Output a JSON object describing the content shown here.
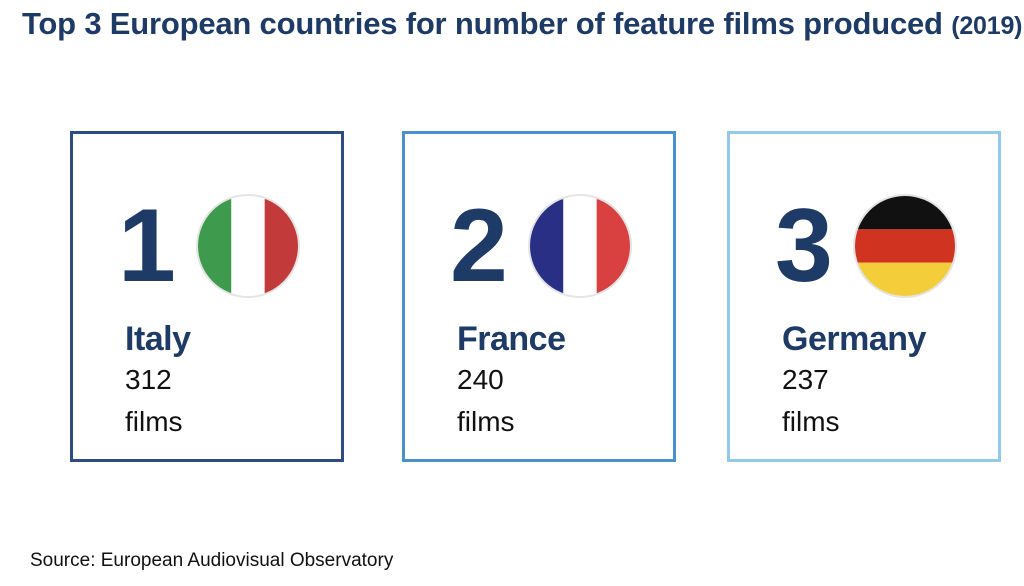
{
  "title": {
    "main": "Top 3 European countries for number of feature films produced",
    "year": "(2019)"
  },
  "cards": [
    {
      "rank": "1",
      "country": "Italy",
      "count": "312",
      "unit": "films",
      "flag_icon": "italy-flag-icon",
      "flag_colors": [
        "#3e9a4c",
        "#ffffff",
        "#c23a3a"
      ]
    },
    {
      "rank": "2",
      "country": "France",
      "count": "240",
      "unit": "films",
      "flag_icon": "france-flag-icon",
      "flag_colors": [
        "#2a2f86",
        "#ffffff",
        "#d94141"
      ]
    },
    {
      "rank": "3",
      "country": "Germany",
      "count": "237",
      "unit": "films",
      "flag_icon": "germany-flag-icon",
      "flag_colors": [
        "#111111",
        "#d0331f",
        "#f4cd3a"
      ]
    }
  ],
  "source": "Source: European Audiovisual Observatory",
  "colors": {
    "title": "#1e3a66",
    "card1_border": "#2c4d82",
    "card2_border": "#4a92cf",
    "card3_border": "#93c9ec"
  }
}
